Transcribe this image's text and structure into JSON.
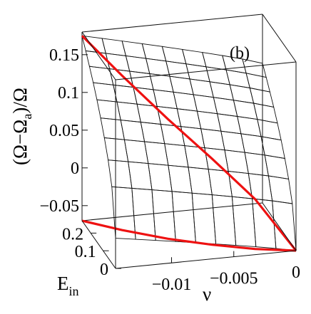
{
  "chart_data": {
    "type": "surface3d",
    "panel_label": "(b)",
    "x_axis": {
      "label": "ν",
      "ticks": [
        {
          "value": -0.01,
          "label": "−0.01"
        },
        {
          "value": -0.005,
          "label": "−0.005"
        },
        {
          "value": 0,
          "label": "0"
        }
      ],
      "range": [
        -0.0145,
        0
      ]
    },
    "y_axis": {
      "label_main": "E",
      "label_sub": "in",
      "ticks": [
        {
          "value": 0,
          "label": "0"
        },
        {
          "value": 0.1,
          "label": "0.1"
        },
        {
          "value": 0.2,
          "label": "0.2"
        }
      ],
      "range": [
        0,
        0.27
      ]
    },
    "z_axis": {
      "label_pre": "(Ω−Ω",
      "label_sub": "a",
      "label_post": ")/Ω",
      "ticks": [
        {
          "value": -0.05,
          "label": "−0.05"
        },
        {
          "value": 0,
          "label": "0"
        },
        {
          "value": 0.05,
          "label": "0.05"
        },
        {
          "value": 0.1,
          "label": "0.1"
        },
        {
          "value": 0.15,
          "label": "0.15"
        }
      ],
      "range": [
        -0.07,
        0.18
      ]
    },
    "surface": {
      "z_at_nu_min_E_max": 0.175,
      "z_at_nu_min_E_min": -0.03,
      "z_at_nu_zero_E_max": 0.115,
      "z_at_nu_zero_E_min": -0.07,
      "colormap": [
        "#1c1d4c",
        "#2d3a78",
        "#3e5f8f",
        "#5c8a9c",
        "#a5dccc"
      ]
    },
    "boundary_curves": {
      "color": "#ee1111",
      "points": [
        {
          "nu": -0.0145,
          "E": 0.27
        },
        {
          "nu": -0.012,
          "E": 0.2
        },
        {
          "nu": -0.009,
          "E": 0.13
        },
        {
          "nu": -0.006,
          "E": 0.075
        },
        {
          "nu": -0.003,
          "E": 0.03
        },
        {
          "nu": 0,
          "E": 0
        }
      ]
    },
    "grid": false
  }
}
